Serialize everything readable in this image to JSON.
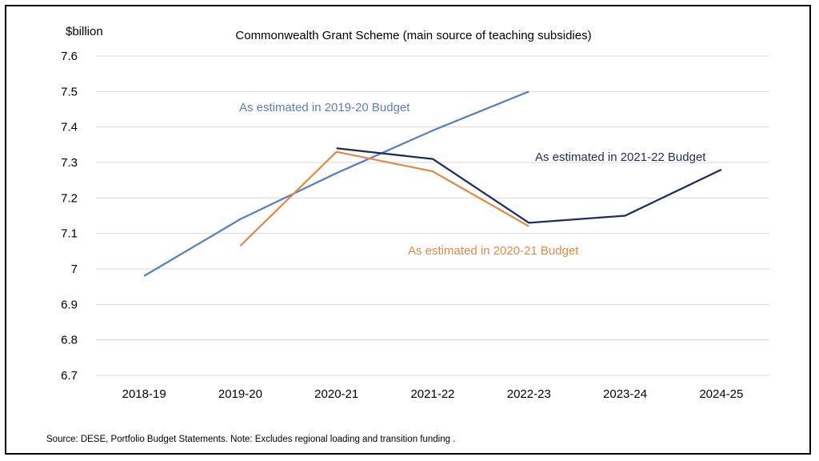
{
  "chart_data": {
    "type": "line",
    "title": "Commonwealth Grant Scheme (main source of teaching subsidies)",
    "ylabel": "$billion",
    "xlabel": "",
    "categories": [
      "2018-19",
      "2019-20",
      "2020-21",
      "2021-22",
      "2022-23",
      "2023-24",
      "2024-25"
    ],
    "ylim": [
      6.7,
      7.6
    ],
    "yticks": [
      "7.6",
      "7.5",
      "7.4",
      "7.3",
      "7.2",
      "7.1",
      "7",
      "6.9",
      "6.8",
      "6.7"
    ],
    "grid": true,
    "series": [
      {
        "name": "As estimated in 2019-20 Budget",
        "color": "#5b7fbe",
        "values": [
          6.98,
          7.14,
          7.27,
          7.39,
          7.5,
          null,
          null
        ]
      },
      {
        "name": "As estimated in 2020-21 Budget",
        "color": "#e08a46",
        "values": [
          null,
          7.065,
          7.33,
          7.275,
          7.12,
          null,
          null
        ]
      },
      {
        "name": "As estimated in 2021-22 Budget",
        "color": "#1f2d5c",
        "values": [
          null,
          null,
          7.34,
          7.31,
          7.13,
          7.15,
          7.28
        ]
      }
    ],
    "source": "Source: DESE, Portfolio Budget Statements. Note: Excludes regional loading and transition funding ."
  }
}
